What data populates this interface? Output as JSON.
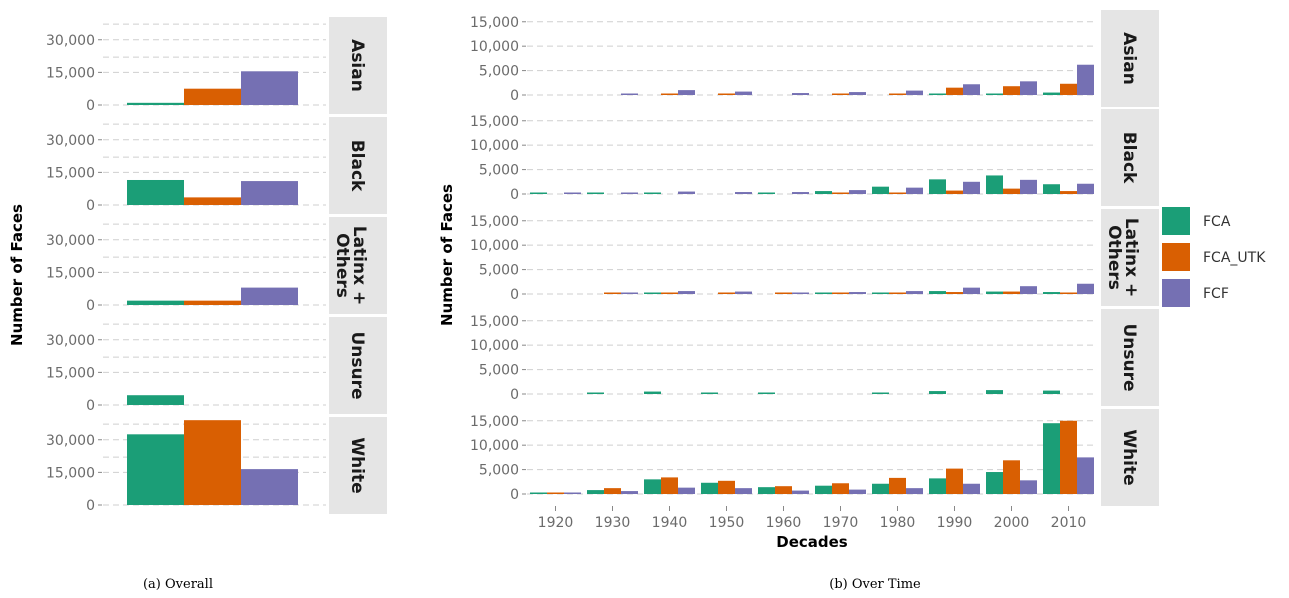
{
  "colors": {
    "FCA": "#1b9e77",
    "FCA_UTK": "#d95f02",
    "FCF": "#7570b3",
    "strip": "#e5e5e5",
    "grid": "#cfcfcf"
  },
  "legend": [
    "FCA",
    "FCA_UTK",
    "FCF"
  ],
  "captions": {
    "a": "(a) Overall",
    "b": "(b) Over Time"
  },
  "chart_data": [
    {
      "type": "bar",
      "id": "overall",
      "ylabel": "Number of Faces",
      "xlabel": "",
      "ylim": [
        0,
        40000
      ],
      "yticks": [
        0,
        15000,
        30000
      ],
      "ytick_labels": [
        "0",
        "15,000",
        "30,000"
      ],
      "facets": [
        "Asian",
        "Black",
        "Latinx + Others",
        "Unsure",
        "White"
      ],
      "series": [
        {
          "name": "FCA",
          "values": [
            1000,
            11500,
            2000,
            4500,
            32500
          ]
        },
        {
          "name": "FCA_UTK",
          "values": [
            7500,
            3500,
            2000,
            0,
            39000
          ]
        },
        {
          "name": "FCF",
          "values": [
            15500,
            11000,
            8000,
            0,
            16500
          ]
        }
      ]
    },
    {
      "type": "bar",
      "id": "over_time",
      "ylabel": "Number of Faces",
      "xlabel": "Decades",
      "ylim": [
        0,
        17000
      ],
      "yticks": [
        0,
        5000,
        10000,
        15000
      ],
      "ytick_labels": [
        "0",
        "5,000",
        "10,000",
        "15,000"
      ],
      "categories": [
        "1920",
        "1930",
        "1940",
        "1950",
        "1960",
        "1970",
        "1980",
        "1990",
        "2000",
        "2010"
      ],
      "facets": [
        {
          "name": "Asian",
          "series": [
            {
              "name": "FCA",
              "values": [
                0,
                0,
                0,
                0,
                0,
                0,
                0,
                100,
                100,
                500
              ]
            },
            {
              "name": "FCA_UTK",
              "values": [
                0,
                0,
                300,
                200,
                0,
                100,
                300,
                1500,
                1800,
                2300
              ]
            },
            {
              "name": "FCF",
              "values": [
                0,
                300,
                1000,
                700,
                400,
                600,
                900,
                2200,
                2800,
                6200
              ]
            }
          ]
        },
        {
          "name": "Black",
          "series": [
            {
              "name": "FCA",
              "values": [
                100,
                100,
                100,
                0,
                100,
                600,
                1500,
                3000,
                3800,
                2000
              ]
            },
            {
              "name": "FCA_UTK",
              "values": [
                0,
                0,
                0,
                0,
                0,
                200,
                300,
                700,
                1100,
                600
              ]
            },
            {
              "name": "FCF",
              "values": [
                100,
                200,
                500,
                400,
                400,
                800,
                1300,
                2500,
                2900,
                2100
              ]
            }
          ]
        },
        {
          "name": "Latinx + Others",
          "series": [
            {
              "name": "FCA",
              "values": [
                0,
                0,
                100,
                0,
                0,
                100,
                100,
                600,
                500,
                400
              ]
            },
            {
              "name": "FCA_UTK",
              "values": [
                0,
                100,
                100,
                100,
                100,
                200,
                300,
                400,
                500,
                300
              ]
            },
            {
              "name": "FCF",
              "values": [
                0,
                300,
                600,
                500,
                300,
                400,
                600,
                1300,
                1600,
                2100
              ]
            }
          ]
        },
        {
          "name": "Unsure",
          "series": [
            {
              "name": "FCA",
              "values": [
                0,
                200,
                500,
                300,
                100,
                0,
                200,
                600,
                800,
                700
              ]
            },
            {
              "name": "FCA_UTK",
              "values": [
                0,
                0,
                0,
                0,
                0,
                0,
                0,
                0,
                0,
                0
              ]
            },
            {
              "name": "FCF",
              "values": [
                0,
                0,
                0,
                0,
                0,
                0,
                0,
                0,
                0,
                0
              ]
            }
          ]
        },
        {
          "name": "White",
          "series": [
            {
              "name": "FCA",
              "values": [
                200,
                800,
                3000,
                2300,
                1400,
                1700,
                2100,
                3200,
                4500,
                14500
              ]
            },
            {
              "name": "FCA_UTK",
              "values": [
                300,
                1200,
                3400,
                2700,
                1600,
                2200,
                3300,
                5200,
                6900,
                15000
              ]
            },
            {
              "name": "FCF",
              "values": [
                100,
                600,
                1300,
                1200,
                700,
                900,
                1200,
                2100,
                2800,
                7500
              ]
            }
          ]
        }
      ]
    }
  ]
}
